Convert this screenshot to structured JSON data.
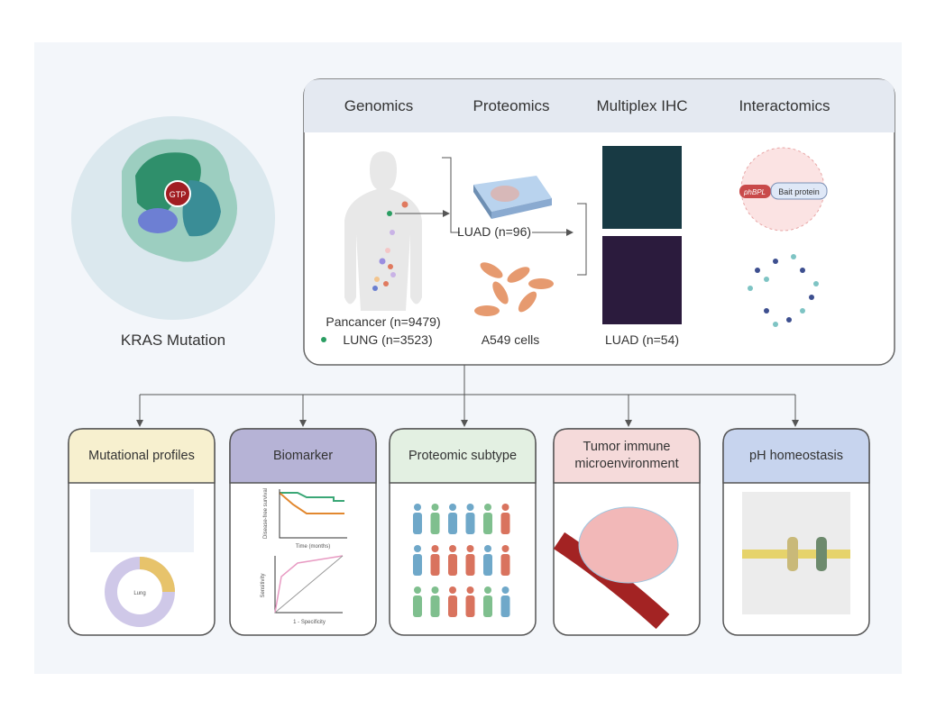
{
  "center": {
    "label": "KRAS Mutation",
    "molecule": "GTP"
  },
  "top_panel": {
    "headers": [
      "Genomics",
      "Proteomics",
      "Multiplex IHC",
      "Interactomics"
    ],
    "genomics": {
      "pancancer": "Pancancer (n=9479)",
      "lung": "LUNG (n=3523)"
    },
    "proteomics": {
      "tissue": "LUAD (n=96)",
      "cells": "A549 cells"
    },
    "ihc": {
      "cohort": "LUAD (n=54)"
    },
    "interactomics": {
      "enzyme": "phBPL",
      "bait": "Bait protein"
    }
  },
  "panels": [
    {
      "title": "Mutational profiles",
      "donut_label": "Lung"
    },
    {
      "title": "Biomarker",
      "km_y": "Disease-free survival",
      "km_x": "Time (months)",
      "roc_y": "Sensitivity",
      "roc_x": "1 - Specificity"
    },
    {
      "title": "Proteomic subtype"
    },
    {
      "title": "Tumor immune microenvironment"
    },
    {
      "title": "pH homeostasis"
    }
  ]
}
